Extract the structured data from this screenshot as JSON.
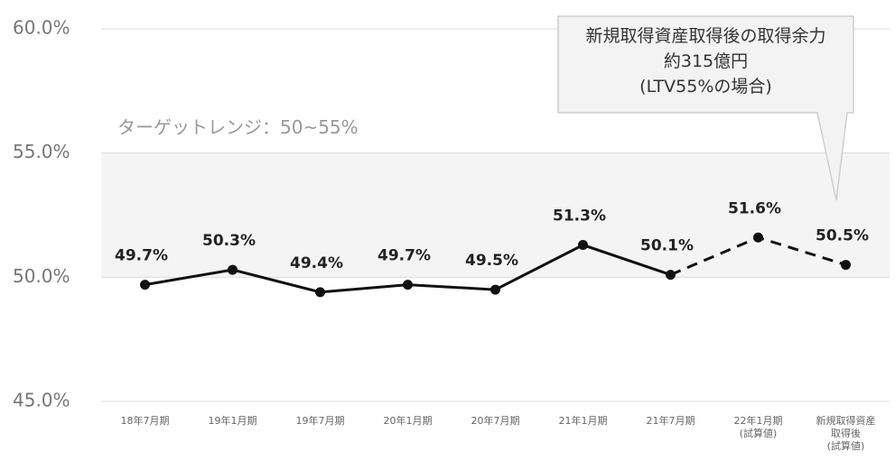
{
  "chart_data": {
    "type": "line",
    "categories": [
      "18年7月期",
      "19年1月期",
      "19年7月期",
      "20年1月期",
      "20年7月期",
      "21年1月期",
      "21年7月期",
      "22年1月期\n(試算値)",
      "新規取得資産\n取得後\n(試算値)"
    ],
    "series": [
      {
        "color": "#111111",
        "values": [
          49.7,
          50.3,
          49.4,
          49.7,
          49.5,
          51.3,
          50.1,
          51.6,
          50.5
        ],
        "value_labels": [
          "49.7%",
          "50.3%",
          "49.4%",
          "49.7%",
          "49.5%",
          "51.3%",
          "50.1%",
          "51.6%",
          "50.5%"
        ],
        "dashed_from_index": 6
      }
    ],
    "ylim": [
      45,
      60
    ],
    "yticks": [
      {
        "value": 45,
        "label": "45.0%"
      },
      {
        "value": 50,
        "label": "50.0%"
      },
      {
        "value": 55,
        "label": "55.0%"
      },
      {
        "value": 60,
        "label": "60.0%"
      }
    ],
    "grid": true,
    "target_range": {
      "label": "ターゲットレンジ：50~55%",
      "range": [
        50,
        55
      ]
    },
    "annotation": "新規取得資産取得後の取得余力\n約315億円\n(LTV55%の場合)"
  }
}
